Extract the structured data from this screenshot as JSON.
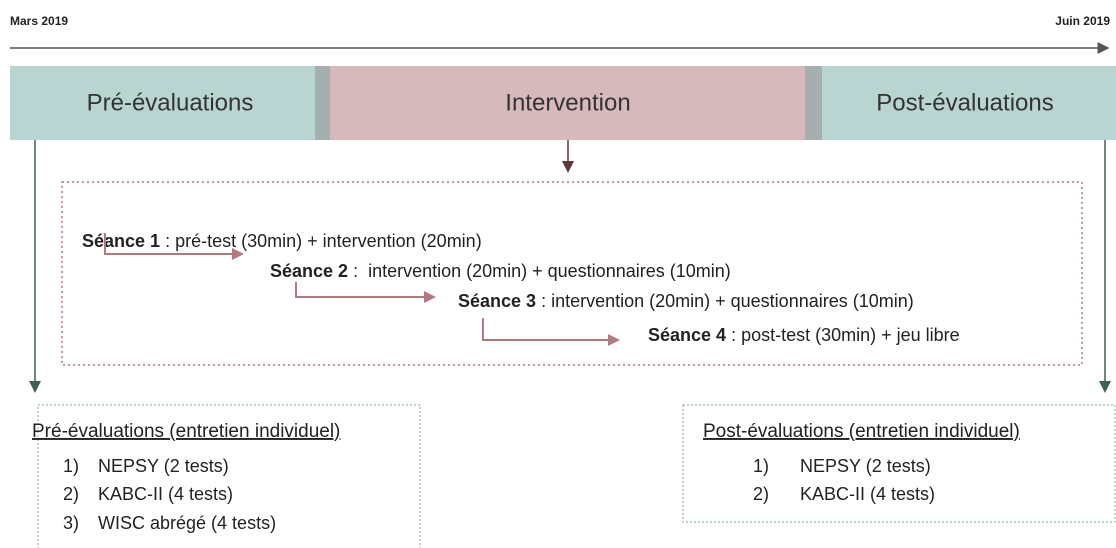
{
  "timeline": {
    "start": "Mars 2019",
    "end": "Juin 2019"
  },
  "phases": [
    "Pré-évaluations",
    "Intervention",
    "Post-évaluations"
  ],
  "sessions": [
    {
      "label": "Séance 1",
      "text": " : pré-test (30min) + intervention (20min)"
    },
    {
      "label": "Séance 2",
      "text": " :  intervention (20min) + questionnaires (10min)"
    },
    {
      "label": "Séance 3",
      "text": " : intervention (20min) + questionnaires (10min)"
    },
    {
      "label": "Séance 4",
      "text": " : post-test (30min) + jeu libre"
    }
  ],
  "pre_box": {
    "title": "Pré-évaluations (entretien individuel)",
    "items": [
      {
        "number": "1)",
        "text": "NEPSY (2 tests)"
      },
      {
        "number": "2)",
        "text": "KABC-II (4 tests)"
      },
      {
        "number": "3)",
        "text": "WISC abrégé (4 tests)"
      }
    ]
  },
  "post_box": {
    "title": "Post-évaluations (entretien individuel)",
    "items": [
      {
        "number": "1)",
        "text": "NEPSY (2 tests)"
      },
      {
        "number": "2)",
        "text": "KABC-II (4 tests)"
      }
    ]
  }
}
